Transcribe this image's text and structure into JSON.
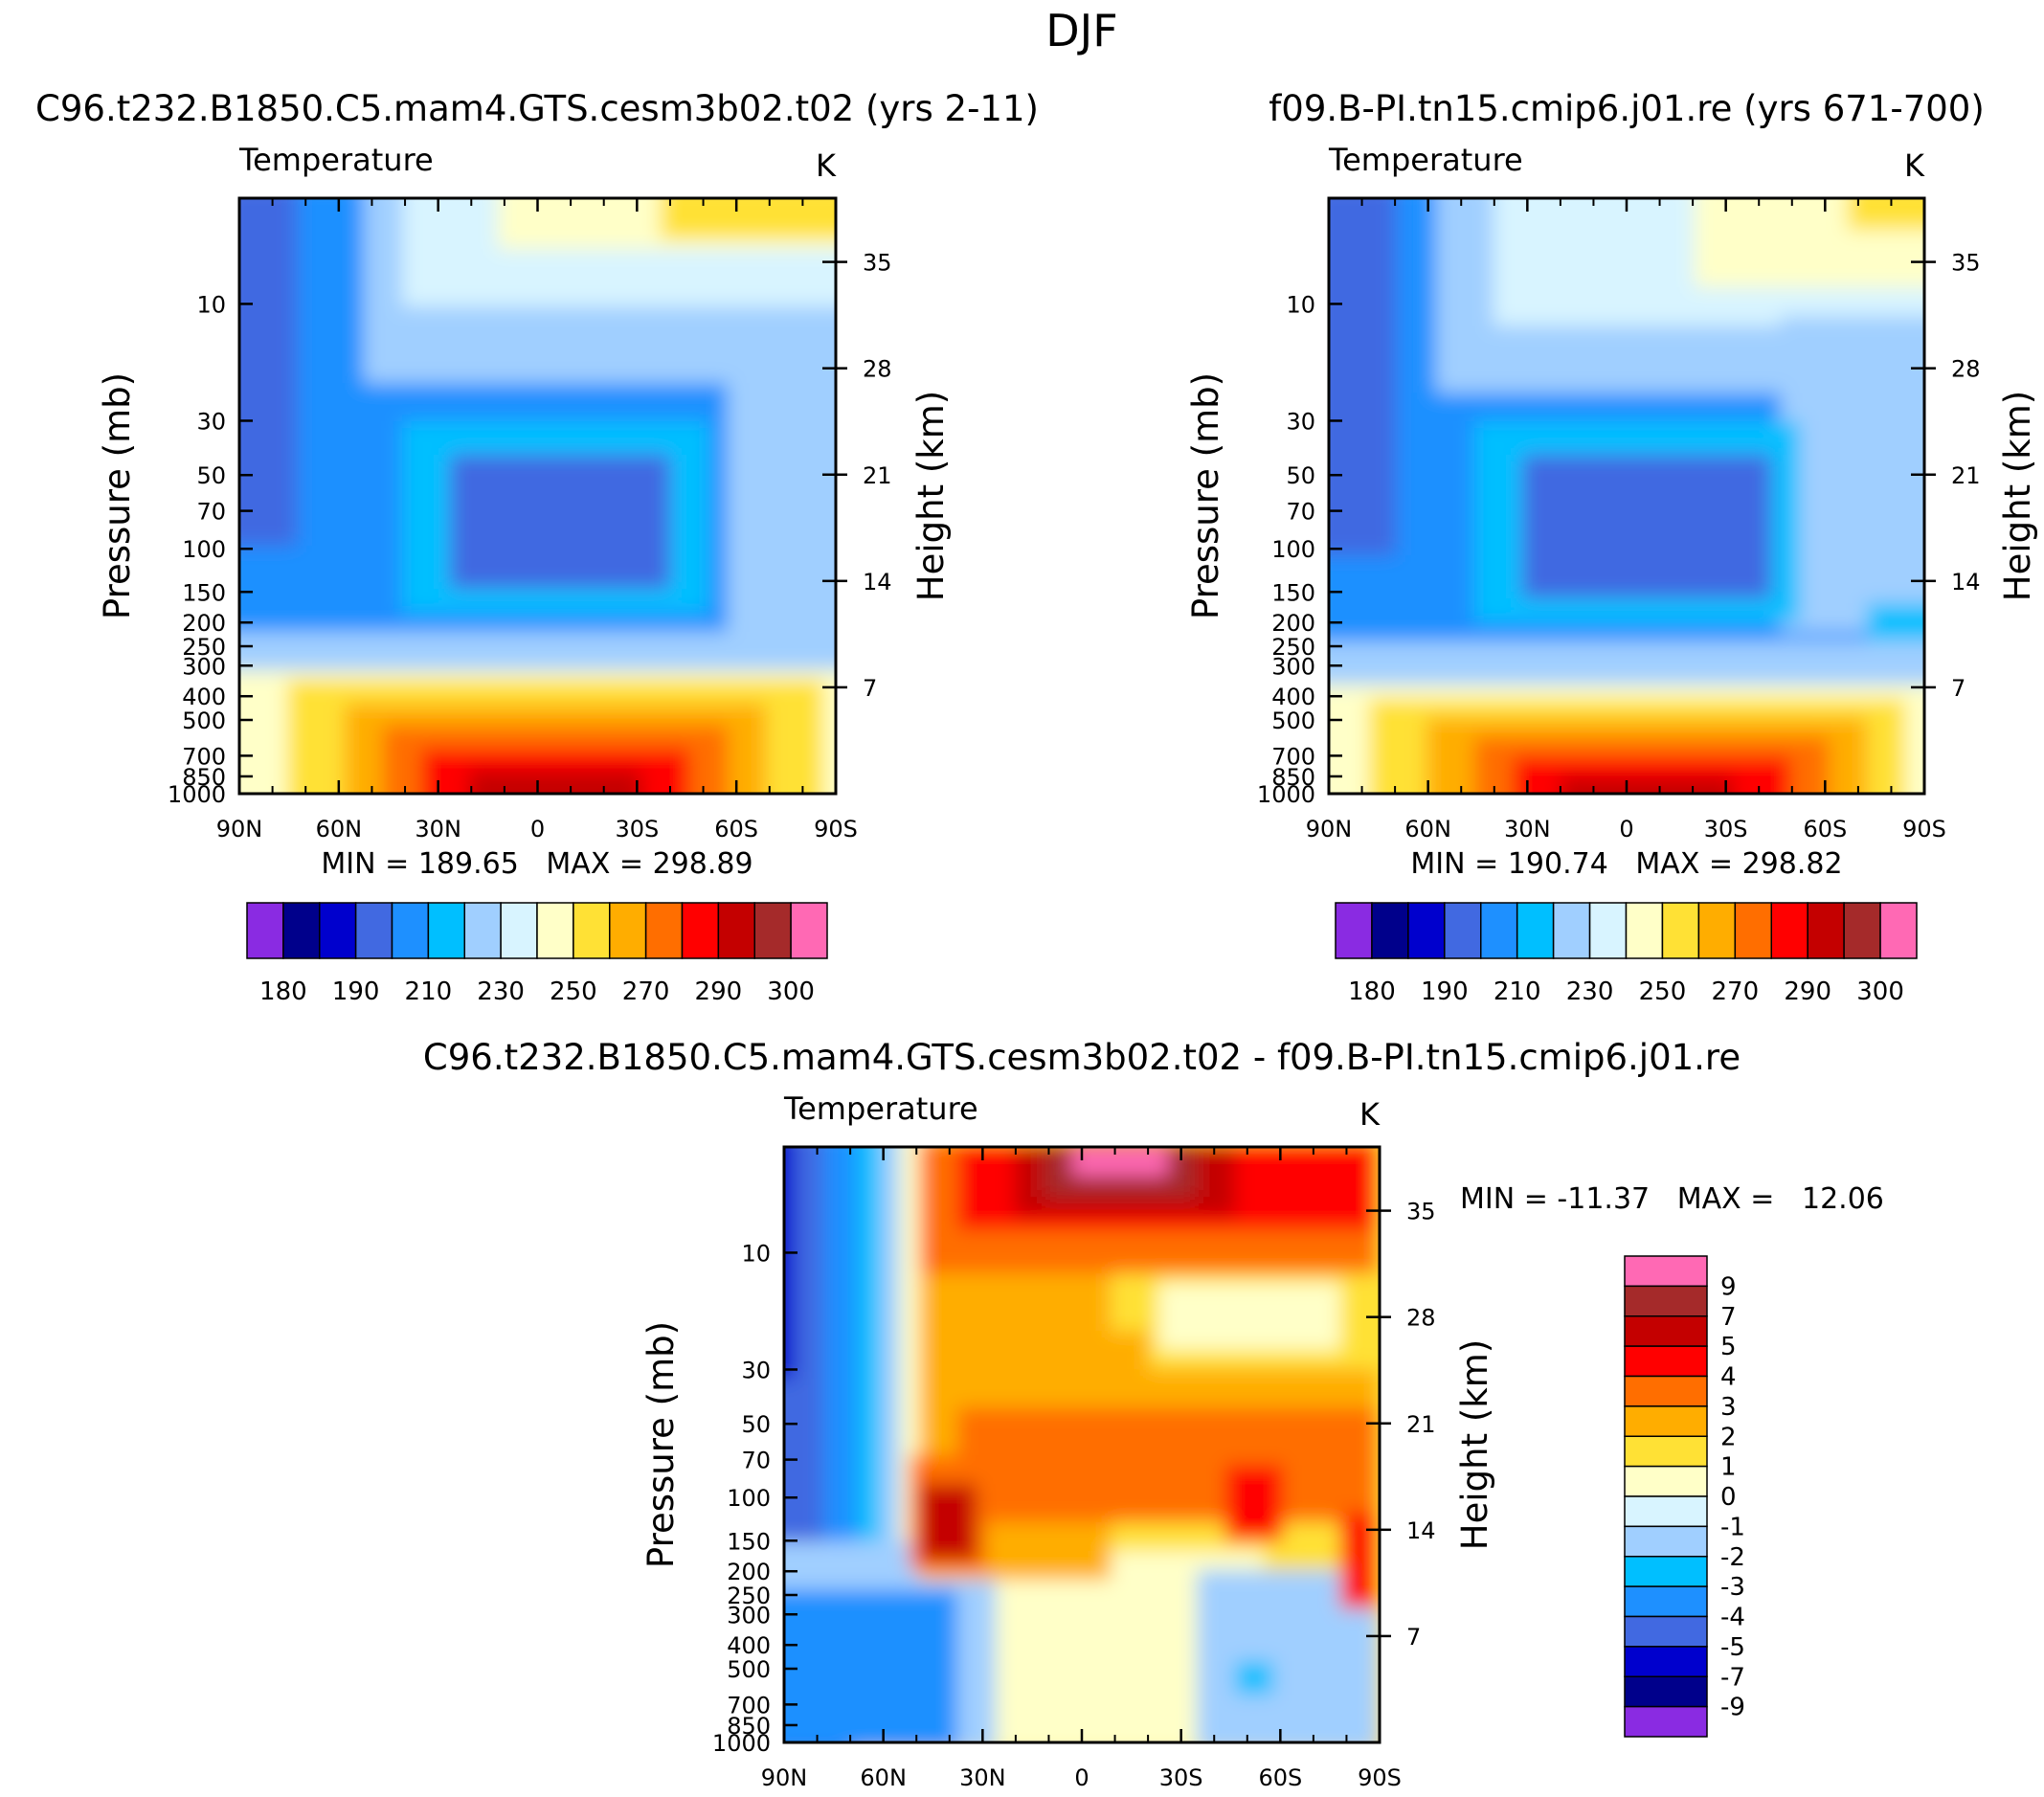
{
  "page_title": "DJF",
  "colors": {
    "abs": [
      "#8a2be2",
      "#00008b",
      "#0000cd",
      "#4169e1",
      "#1e90ff",
      "#00bfff",
      "#a0cfff",
      "#d8f4ff",
      "#ffffc8",
      "#ffe135",
      "#ffad00",
      "#ff6e00",
      "#ff0000",
      "#c40000",
      "#a52a2a",
      "#ff69b4"
    ],
    "diff": [
      "#8a2be2",
      "#00008b",
      "#0000cd",
      "#4169e1",
      "#1e90ff",
      "#00bfff",
      "#a0cfff",
      "#d8f4ff",
      "#ffffc8",
      "#ffe135",
      "#ffad00",
      "#ff6e00",
      "#ff0000",
      "#c40000",
      "#a52a2a",
      "#ff69b4"
    ]
  },
  "chart_data": [
    {
      "type": "heatmap",
      "title": "C96.t232.B1850.C5.mam4.GTS.cesm3b02.t02 (yrs 2-11)",
      "subtitle": "Temperature",
      "units": "K",
      "ylabel": "Pressure (mb)",
      "ylabel_right": "Height (km)",
      "x_ticks": [
        "90N",
        "60N",
        "30N",
        "0",
        "30S",
        "60S",
        "90S"
      ],
      "y_ticks": [
        "10",
        "30",
        "50",
        "70",
        "100",
        "150",
        "200",
        "250",
        "300",
        "400",
        "500",
        "700",
        "850",
        "1000"
      ],
      "y_ticks_right": [
        "35",
        "28",
        "21",
        "14",
        "7"
      ],
      "stats": {
        "min_label": "MIN =",
        "min": "189.65",
        "max_label": "MAX =",
        "max": "298.89"
      },
      "levels": [
        180,
        185,
        190,
        200,
        210,
        220,
        230,
        240,
        250,
        260,
        270,
        280,
        290,
        295,
        300
      ],
      "level_labels": [
        "180",
        "190",
        "210",
        "230",
        "250",
        "270",
        "290",
        "300"
      ]
    },
    {
      "type": "heatmap",
      "title": "f09.B-PI.tn15.cmip6.j01.re (yrs 671-700)",
      "subtitle": "Temperature",
      "units": "K",
      "ylabel": "Pressure (mb)",
      "ylabel_right": "Height (km)",
      "x_ticks": [
        "90N",
        "60N",
        "30N",
        "0",
        "30S",
        "60S",
        "90S"
      ],
      "y_ticks": [
        "10",
        "30",
        "50",
        "70",
        "100",
        "150",
        "200",
        "250",
        "300",
        "400",
        "500",
        "700",
        "850",
        "1000"
      ],
      "y_ticks_right": [
        "35",
        "28",
        "21",
        "14",
        "7"
      ],
      "stats": {
        "min_label": "MIN =",
        "min": "190.74",
        "max_label": "MAX =",
        "max": "298.82"
      },
      "levels": [
        180,
        185,
        190,
        200,
        210,
        220,
        230,
        240,
        250,
        260,
        270,
        280,
        290,
        295,
        300
      ],
      "level_labels": [
        "180",
        "190",
        "210",
        "230",
        "250",
        "270",
        "290",
        "300"
      ]
    },
    {
      "type": "heatmap",
      "title": "C96.t232.B1850.C5.mam4.GTS.cesm3b02.t02 - f09.B-PI.tn15.cmip6.j01.re",
      "subtitle": "Temperature",
      "units": "K",
      "ylabel": "Pressure (mb)",
      "ylabel_right": "Height (km)",
      "x_ticks": [
        "90N",
        "60N",
        "30N",
        "0",
        "30S",
        "60S",
        "90S"
      ],
      "y_ticks": [
        "10",
        "30",
        "50",
        "70",
        "100",
        "150",
        "200",
        "250",
        "300",
        "400",
        "500",
        "700",
        "850",
        "1000"
      ],
      "y_ticks_right": [
        "35",
        "28",
        "21",
        "14",
        "7"
      ],
      "stats": {
        "min_label": "MIN =",
        "min": "-11.37",
        "max_label": "MAX =",
        "max": "12.06"
      },
      "levels": [
        -9,
        -7,
        -5,
        -4,
        -3,
        -2,
        -1,
        0,
        1,
        2,
        3,
        4,
        5,
        7,
        9
      ],
      "level_labels": [
        "9",
        "7",
        "5",
        "4",
        "3",
        "2",
        "1",
        "0",
        "-1",
        "-2",
        "-3",
        "-4",
        "-5",
        "-7",
        "-9"
      ]
    }
  ]
}
